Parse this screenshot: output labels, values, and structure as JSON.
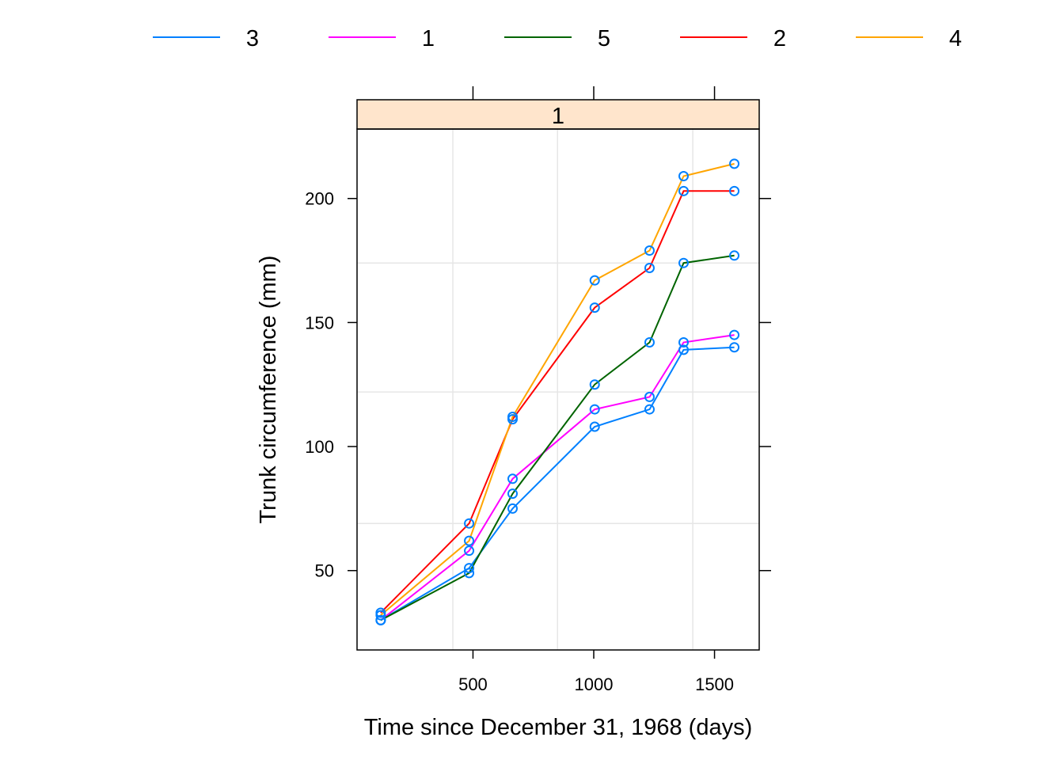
{
  "chart_data": {
    "type": "line",
    "strip_label": "1",
    "xlabel": "Time since December 31, 1968 (days)",
    "ylabel": "Trunk circumference (mm)",
    "xlim": [
      20,
      1685
    ],
    "ylim": [
      18,
      228
    ],
    "x_ticks": [
      500,
      1000,
      1500
    ],
    "y_ticks": [
      50,
      100,
      150,
      200
    ],
    "x_tick_labels": [
      "500",
      "1000",
      "1500"
    ],
    "y_tick_labels": [
      "50",
      "100",
      "150",
      "200"
    ],
    "grid": true,
    "legend_position": "top",
    "marker_color": "#0080ff",
    "strip_color": "#ffe5cc",
    "x": [
      118,
      484,
      664,
      1004,
      1231,
      1372,
      1582
    ],
    "series": [
      {
        "name": "3",
        "color": "#0080ff",
        "values": [
          30,
          51,
          75,
          108,
          115,
          139,
          140
        ]
      },
      {
        "name": "1",
        "color": "#ff00ff",
        "values": [
          30,
          58,
          87,
          115,
          120,
          142,
          145
        ]
      },
      {
        "name": "5",
        "color": "#006400",
        "values": [
          30,
          49,
          81,
          125,
          142,
          174,
          177
        ]
      },
      {
        "name": "2",
        "color": "#ff0000",
        "values": [
          33,
          69,
          111,
          156,
          172,
          203,
          203
        ]
      },
      {
        "name": "4",
        "color": "#ffa500",
        "values": [
          32,
          62,
          112,
          167,
          179,
          209,
          214
        ]
      }
    ]
  }
}
